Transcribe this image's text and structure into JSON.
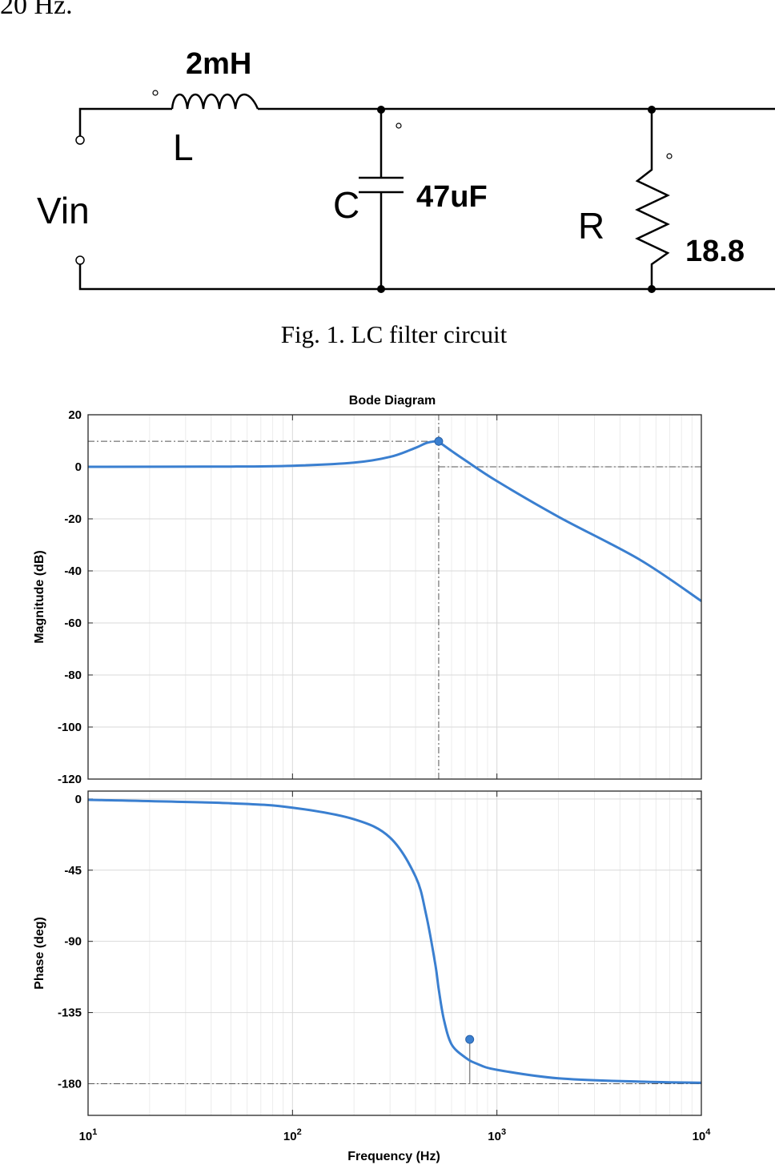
{
  "page": {
    "fragment_text": "20 Hz.",
    "figure_caption": "Fig. 1.    LC filter circuit"
  },
  "circuit": {
    "inductor_symbol": "L",
    "inductor_value": "2mH",
    "capacitor_symbol": "C",
    "capacitor_value": "47uF",
    "resistor_symbol": "R",
    "resistor_value": "18.8",
    "input_label": "Vin"
  },
  "chart_data": {
    "type": "line",
    "title": "Bode Diagram",
    "xlabel": "Frequency  (Hz)",
    "x_scale": "log",
    "xlim": [
      10,
      10000
    ],
    "x_ticks": [
      {
        "value": 10,
        "base": "10",
        "exp": "1"
      },
      {
        "value": 100,
        "base": "10",
        "exp": "2"
      },
      {
        "value": 1000,
        "base": "10",
        "exp": "3"
      },
      {
        "value": 10000,
        "base": "10",
        "exp": "4"
      }
    ],
    "series_color": "#3a7fd0",
    "grid": true,
    "panels": [
      {
        "ylabel": "Magnitude (dB)",
        "ylim": [
          -120,
          20
        ],
        "yticks": [
          20,
          0,
          -20,
          -40,
          -60,
          -80,
          -100,
          -120
        ],
        "series": [
          {
            "x": [
              10,
              50,
              100,
              200,
              300,
              400,
              450,
              500,
              520,
              600,
              700,
              1000,
              2000,
              5000,
              10000
            ],
            "y": [
              0,
              0.1,
              0.4,
              1.6,
              3.8,
              7.3,
              9.1,
              9.8,
              9.5,
              6.1,
              2.5,
              -5.5,
              -19.2,
              -35.7,
              -51.6
            ]
          }
        ],
        "markers": [
          {
            "x": 519,
            "y": 9.8
          }
        ],
        "reference_lines": [
          {
            "orientation": "horizontal",
            "value": 9.8,
            "from": 10,
            "to": 519
          },
          {
            "orientation": "horizontal",
            "value": 0,
            "from": 519,
            "to": 10000
          },
          {
            "orientation": "vertical",
            "value": 519
          }
        ]
      },
      {
        "ylabel": "Phase (deg)",
        "ylim": [
          -200,
          5
        ],
        "yticks": [
          0,
          -45,
          -90,
          -135,
          -180
        ],
        "series": [
          {
            "x": [
              10,
              50,
              100,
              200,
              300,
              400,
              450,
              500,
              519,
              550,
              600,
              700,
              800,
              1000,
              2000,
              5000,
              10000
            ],
            "y": [
              -0.5,
              -2.7,
              -5.5,
              -12.8,
              -24.4,
              -49.1,
              -72.8,
              -104.8,
              -120,
              -139.4,
              -155.1,
              -163.4,
              -167.4,
              -171.2,
              -176.6,
              -178.7,
              -179.4
            ]
          }
        ],
        "markers": [
          {
            "x": 736,
            "y": -152
          }
        ],
        "reference_lines": [
          {
            "orientation": "horizontal",
            "value": -180,
            "from": 10,
            "to": 10000
          },
          {
            "orientation": "vertical",
            "value": 736,
            "from": -180,
            "to": -152
          }
        ]
      }
    ]
  }
}
